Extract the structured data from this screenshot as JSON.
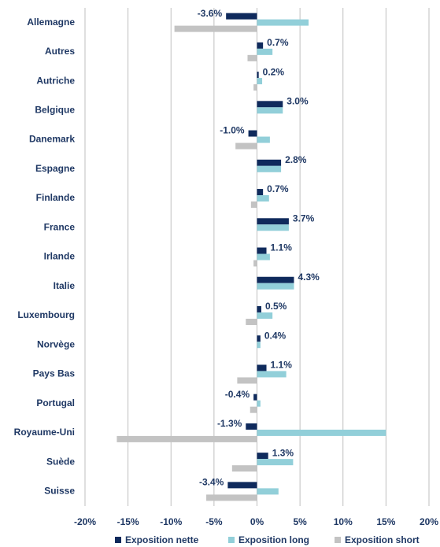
{
  "chart_data": {
    "type": "hbar",
    "categories": [
      "Allemagne",
      "Autres",
      "Autriche",
      "Belgique",
      "Danemark",
      "Espagne",
      "Finlande",
      "France",
      "Irlande",
      "Italie",
      "Luxembourg",
      "Norvège",
      "Pays Bas",
      "Portugal",
      "Royaume-Uni",
      "Suède",
      "Suisse"
    ],
    "series": [
      {
        "name": "Exposition nette",
        "color": "#0f2a5c",
        "values": [
          -3.6,
          0.7,
          0.2,
          3.0,
          -1.0,
          2.8,
          0.7,
          3.7,
          1.1,
          4.3,
          0.5,
          0.4,
          1.1,
          -0.4,
          -1.3,
          1.3,
          -3.4
        ],
        "value_labels": [
          "-3.6%",
          "0.7%",
          "0.2%",
          "3.0%",
          "-1.0%",
          "2.8%",
          "0.7%",
          "3.7%",
          "1.1%",
          "4.3%",
          "0.5%",
          "0.4%",
          "1.1%",
          "-0.4%",
          "-1.3%",
          "1.3%",
          "-3.4%"
        ]
      },
      {
        "name": "Exposition long",
        "color": "#92cfd9",
        "values": [
          6.0,
          1.8,
          0.6,
          3.0,
          1.5,
          2.8,
          1.4,
          3.7,
          1.5,
          4.3,
          1.8,
          0.4,
          3.4,
          0.4,
          15.0,
          4.2,
          2.5
        ]
      },
      {
        "name": "Exposition short",
        "color": "#c3c3c3",
        "values": [
          -9.6,
          -1.1,
          -0.4,
          0,
          -2.5,
          0,
          -0.7,
          0,
          -0.4,
          0,
          -1.3,
          0,
          -2.3,
          -0.8,
          -16.3,
          -2.9,
          -5.9
        ]
      }
    ],
    "xlim": [
      -20,
      20
    ],
    "xticks": [
      {
        "value": -20,
        "label": "-20%"
      },
      {
        "value": -15,
        "label": "-15%"
      },
      {
        "value": -10,
        "label": "-10%"
      },
      {
        "value": -5,
        "label": "-5%"
      },
      {
        "value": 0,
        "label": "0%"
      },
      {
        "value": 5,
        "label": "5%"
      },
      {
        "value": 10,
        "label": "10%"
      },
      {
        "value": 15,
        "label": "15%"
      },
      {
        "value": 20,
        "label": "20%"
      }
    ],
    "grid": true,
    "legend": "bottom"
  }
}
